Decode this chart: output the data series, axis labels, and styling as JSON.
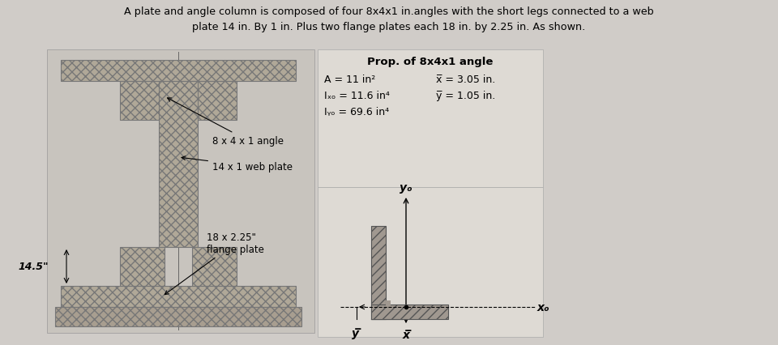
{
  "title_text": "A plate and angle column is composed of four 8x4x1 in.angles with the short legs connected to a web\nplate 14 in. By 1 in. Plus two flange plates each 18 in. by 2.25 in. As shown.",
  "background_color": "#d0ccc8",
  "left_panel_color": "#c8c4be",
  "right_panel_color": "#dedad4",
  "label_14_5": "14.5\"",
  "label_angle": "8 x 4 x 1 angle",
  "label_web": "14 x 1 web plate",
  "label_flange": "18 x 2.25\"\nflange plate",
  "prop_title": "Prop. of 8x4x1 angle",
  "prop_A": "A = 11 in²",
  "prop_Ixo": "Iₓₒ = 11.6 in⁴",
  "prop_Iyo": "Iᵧₒ = 69.6 in⁴",
  "prop_xbar": "x̅ = 3.05 in.",
  "prop_ybar": "y̅ = 1.05 in.",
  "axis_xo": "xₒ",
  "axis_yo": "yₒ",
  "axis_x": "x̅",
  "axis_y": "y̅",
  "steel_color": "#b0a898",
  "steel_edge": "#777777"
}
